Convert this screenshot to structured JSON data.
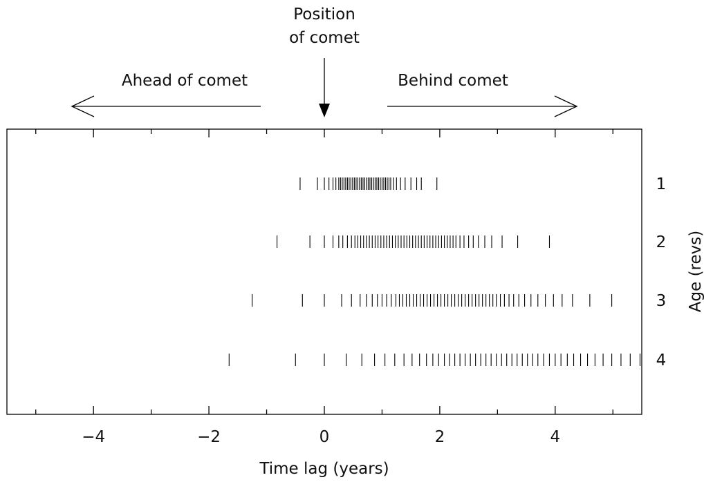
{
  "chart_data": {
    "type": "scatter",
    "title": "",
    "xlabel": "Time lag (years)",
    "ylabel": "Age (revs)",
    "xlim": [
      -5.5,
      5.5
    ],
    "x_ticks": [
      -4,
      -2,
      0,
      2,
      4
    ],
    "x_tick_labels": [
      "−4",
      "−2",
      "0",
      "2",
      "4"
    ],
    "y_categories": [
      "1",
      "2",
      "3",
      "4"
    ],
    "marker": "vertical-tick",
    "grid": false,
    "annotations": {
      "position": "Position\nof comet",
      "ahead": "Ahead of comet",
      "behind": "Behind comet"
    },
    "series": [
      {
        "name": "1",
        "x": [
          -0.42,
          -0.12,
          0.0,
          0.08,
          0.15,
          0.2,
          0.25,
          0.28,
          0.31,
          0.34,
          0.37,
          0.4,
          0.43,
          0.46,
          0.49,
          0.52,
          0.55,
          0.58,
          0.61,
          0.64,
          0.67,
          0.7,
          0.73,
          0.76,
          0.79,
          0.82,
          0.85,
          0.88,
          0.91,
          0.94,
          0.97,
          1.0,
          1.03,
          1.06,
          1.09,
          1.12,
          1.15,
          1.2,
          1.25,
          1.32,
          1.4,
          1.5,
          1.6,
          1.68,
          1.95
        ]
      },
      {
        "name": "2",
        "x": [
          -0.82,
          -0.25,
          0.0,
          0.15,
          0.25,
          0.32,
          0.4,
          0.47,
          0.53,
          0.58,
          0.63,
          0.68,
          0.73,
          0.78,
          0.83,
          0.88,
          0.93,
          0.98,
          1.03,
          1.08,
          1.13,
          1.18,
          1.23,
          1.28,
          1.33,
          1.38,
          1.43,
          1.48,
          1.53,
          1.58,
          1.63,
          1.68,
          1.73,
          1.78,
          1.83,
          1.88,
          1.93,
          1.98,
          2.03,
          2.08,
          2.13,
          2.18,
          2.23,
          2.28,
          2.35,
          2.42,
          2.5,
          2.58,
          2.67,
          2.78,
          2.9,
          3.08,
          3.35,
          3.9
        ]
      },
      {
        "name": "3",
        "x": [
          -1.25,
          -0.38,
          0.0,
          0.3,
          0.47,
          0.62,
          0.73,
          0.83,
          0.92,
          1.0,
          1.08,
          1.16,
          1.24,
          1.3,
          1.36,
          1.42,
          1.48,
          1.54,
          1.6,
          1.66,
          1.72,
          1.78,
          1.84,
          1.9,
          1.96,
          2.02,
          2.08,
          2.14,
          2.2,
          2.26,
          2.32,
          2.38,
          2.44,
          2.5,
          2.56,
          2.62,
          2.68,
          2.74,
          2.8,
          2.86,
          2.92,
          2.98,
          3.05,
          3.12,
          3.2,
          3.28,
          3.37,
          3.47,
          3.58,
          3.7,
          3.83,
          3.97,
          4.12,
          4.3,
          4.6,
          4.98
        ]
      },
      {
        "name": "4",
        "x": [
          -1.65,
          -0.5,
          0.0,
          0.38,
          0.65,
          0.87,
          1.05,
          1.22,
          1.38,
          1.52,
          1.65,
          1.77,
          1.88,
          1.98,
          2.08,
          2.17,
          2.26,
          2.35,
          2.44,
          2.53,
          2.62,
          2.71,
          2.8,
          2.89,
          2.98,
          3.07,
          3.16,
          3.25,
          3.34,
          3.43,
          3.52,
          3.61,
          3.7,
          3.8,
          3.9,
          4.0,
          4.1,
          4.21,
          4.32,
          4.44,
          4.56,
          4.69,
          4.83,
          4.98,
          5.14,
          5.3,
          5.47
        ]
      }
    ]
  }
}
